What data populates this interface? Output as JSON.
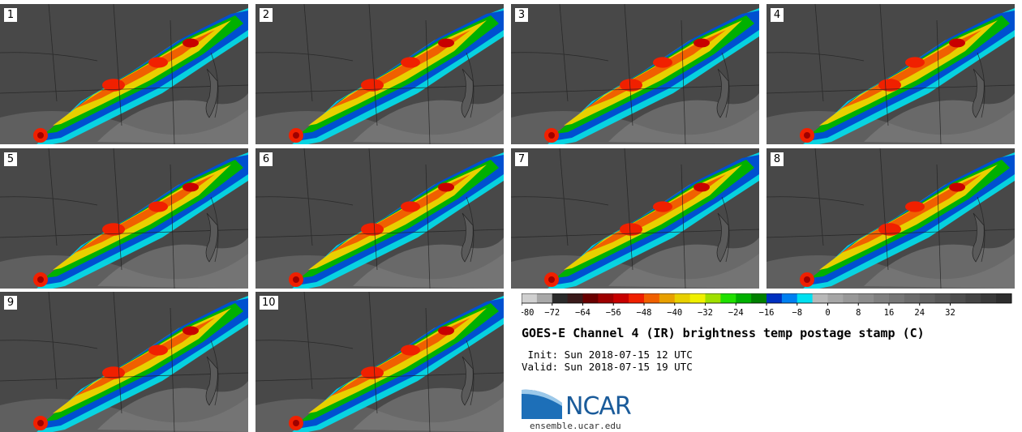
{
  "panels": [
    {
      "label": "1"
    },
    {
      "label": "2"
    },
    {
      "label": "3"
    },
    {
      "label": "4"
    },
    {
      "label": "5"
    },
    {
      "label": "6"
    },
    {
      "label": "7"
    },
    {
      "label": "8"
    },
    {
      "label": "9"
    },
    {
      "label": "10"
    }
  ],
  "colorbar": {
    "ticks": [
      "−80",
      "−72",
      "−64",
      "−56",
      "−48",
      "−40",
      "−32",
      "−24",
      "−16",
      "−8",
      "0",
      "8",
      "16",
      "24",
      "32"
    ],
    "colors": [
      "#d0d0d0",
      "#a8a8a8",
      "#2a2a2a",
      "#3a1a1a",
      "#6a0000",
      "#9e0000",
      "#c80000",
      "#f02000",
      "#f06000",
      "#e8a000",
      "#e8d000",
      "#f0f000",
      "#a0e000",
      "#20e000",
      "#00b000",
      "#008000",
      "#0030c0",
      "#0080f0",
      "#00e0f0",
      "#b8b8b8",
      "#a6a6a6",
      "#989898",
      "#8c8c8c",
      "#808080",
      "#767676",
      "#6c6c6c",
      "#626262",
      "#585858",
      "#4e4e4e",
      "#444444",
      "#3a3a3a",
      "#2e2e2e"
    ]
  },
  "title": "GOES-E Channel 4 (IR) brightness temp postage stamp (C)",
  "init": " Init: Sun 2018-07-15 12 UTC",
  "valid": "Valid: Sun 2018-07-15 19 UTC",
  "logo": {
    "name": "NCAR",
    "site": "ensemble.ucar.edu"
  }
}
